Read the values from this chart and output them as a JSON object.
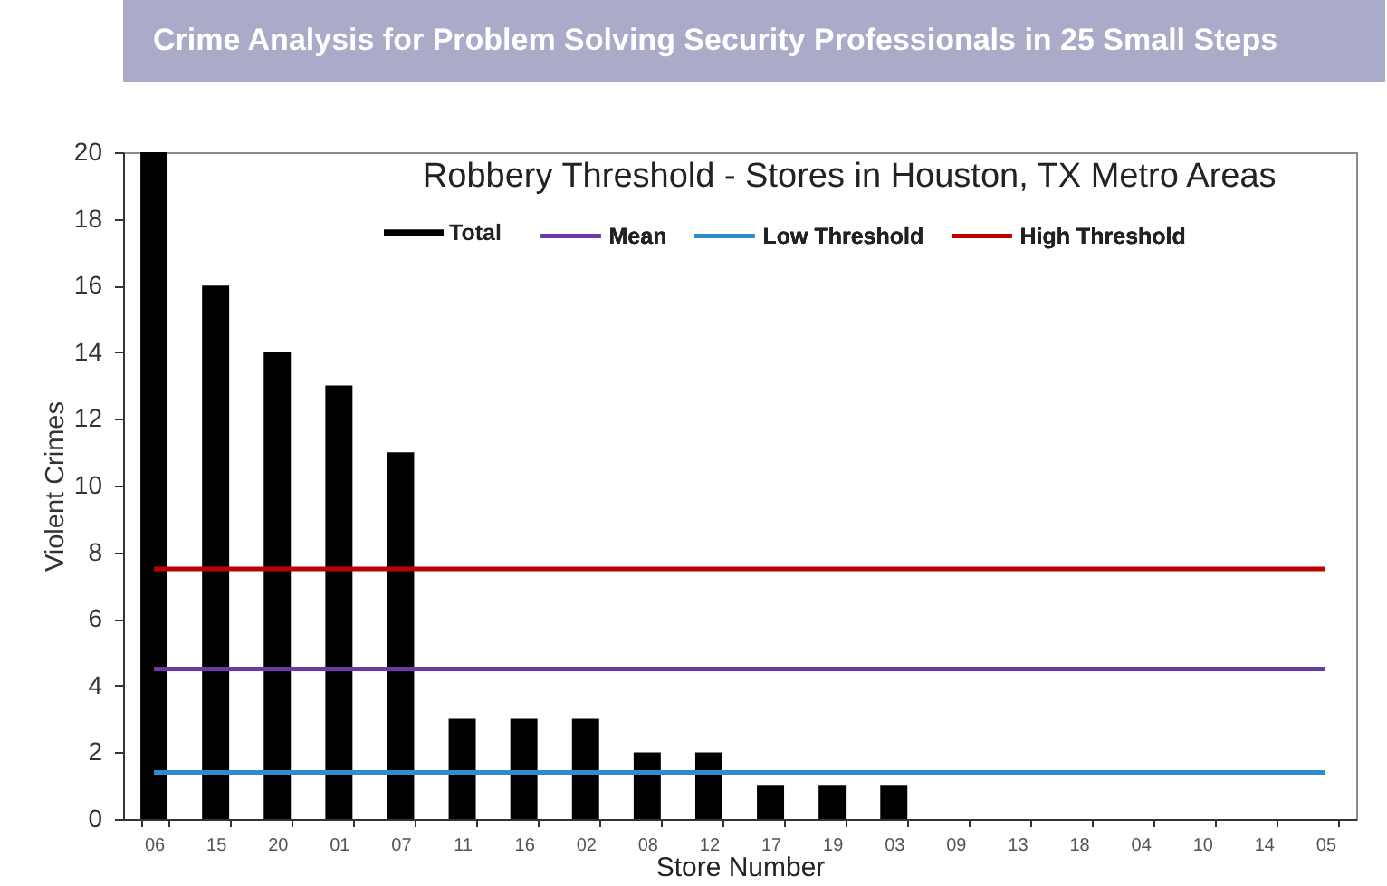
{
  "chart_data": {
    "type": "bar",
    "title": "Robbery Threshold - Stores in Houston, TX Metro Areas",
    "xlabel": "Store Number",
    "ylabel": "Violent Crimes",
    "annotations": [
      "Crime Analysis for Problem Solving Security Professionals in 25 Small Steps"
    ],
    "categories": [
      "06",
      "15",
      "20",
      "01",
      "07",
      "11",
      "16",
      "02",
      "08",
      "12",
      "17",
      "19",
      "03",
      "09",
      "13",
      "18",
      "04",
      "10",
      "14",
      "05"
    ],
    "series": [
      {
        "name": "Total",
        "type": "bar",
        "color": "#000000",
        "values": [
          20,
          16,
          14,
          13,
          11,
          3,
          3,
          3,
          2,
          2,
          1,
          1,
          1,
          0,
          0,
          0,
          0,
          0,
          0,
          0
        ]
      },
      {
        "name": "Mean",
        "type": "line",
        "color": "#6a3aa8",
        "values": [
          4.5,
          4.5,
          4.5,
          4.5,
          4.5,
          4.5,
          4.5,
          4.5,
          4.5,
          4.5,
          4.5,
          4.5,
          4.5,
          4.5,
          4.5,
          4.5,
          4.5,
          4.5,
          4.5,
          4.5
        ]
      },
      {
        "name": "Low Threshold",
        "type": "line",
        "color": "#2f8bc9",
        "values": [
          1.4,
          1.4,
          1.4,
          1.4,
          1.4,
          1.4,
          1.4,
          1.4,
          1.4,
          1.4,
          1.4,
          1.4,
          1.4,
          1.4,
          1.4,
          1.4,
          1.4,
          1.4,
          1.4,
          1.4
        ]
      },
      {
        "name": "High Threshold",
        "type": "line",
        "color": "#c00000",
        "values": [
          7.5,
          7.5,
          7.5,
          7.5,
          7.5,
          7.5,
          7.5,
          7.5,
          7.5,
          7.5,
          7.5,
          7.5,
          7.5,
          7.5,
          7.5,
          7.5,
          7.5,
          7.5,
          7.5,
          7.5
        ]
      }
    ],
    "ylim": [
      0,
      20
    ],
    "yticks": [
      0,
      2,
      4,
      6,
      8,
      10,
      12,
      14,
      16,
      18,
      20
    ],
    "legend": "top",
    "line_style": "solid"
  }
}
